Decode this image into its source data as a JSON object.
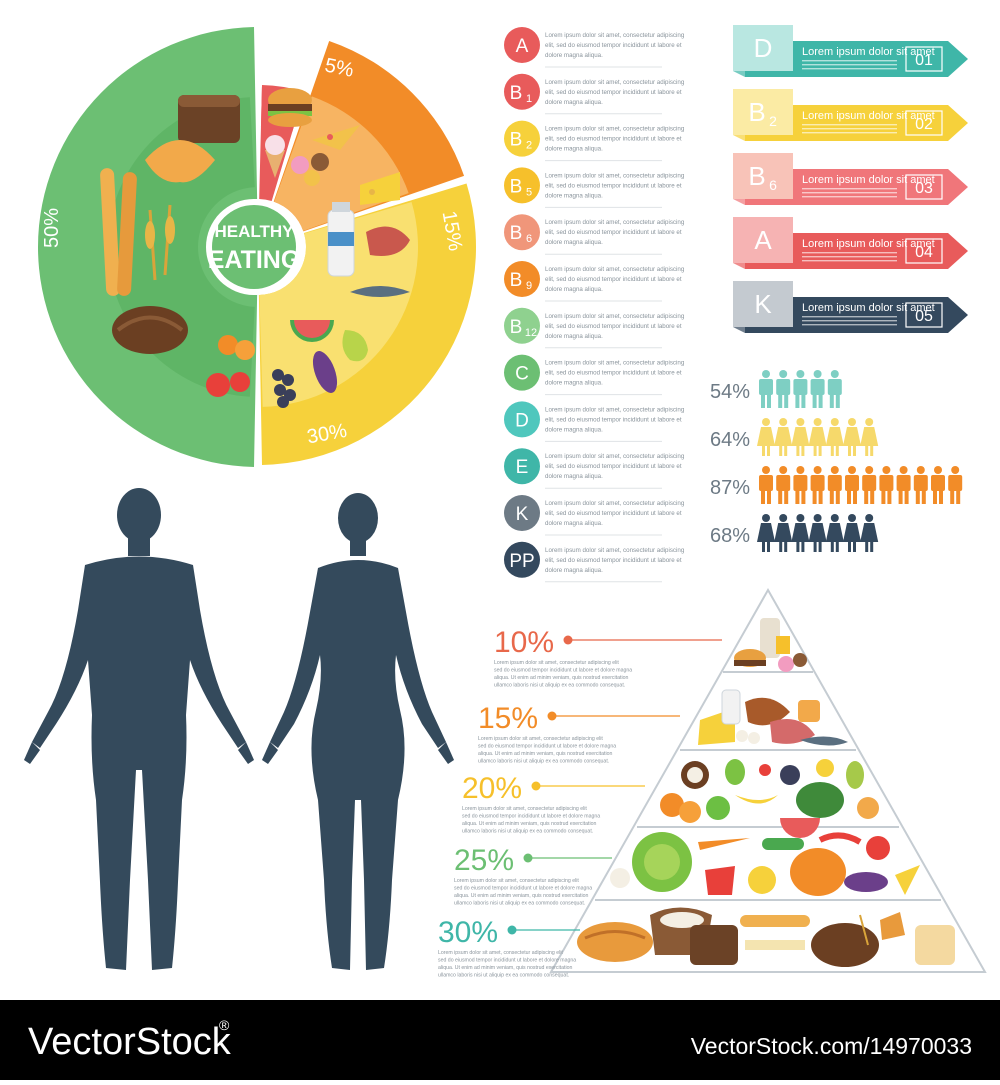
{
  "plate": {
    "title_line1": "HEALTHY",
    "title_line2": "EATING",
    "segments": [
      {
        "name": "grains",
        "percent": 50,
        "label": "50%",
        "color": "#6cbf73",
        "inner": "#5aad62"
      },
      {
        "name": "sweets",
        "percent": 5,
        "label": "5%",
        "color": "#e85b5b",
        "inner": "#f0a6a0"
      },
      {
        "name": "protein",
        "percent": 15,
        "label": "15%",
        "color": "#f28c28",
        "inner": "#f7b462"
      },
      {
        "name": "fruits-vegetables",
        "percent": 30,
        "label": "30%",
        "color": "#f6d13b",
        "inner": "#f9e070"
      }
    ]
  },
  "vitamins": {
    "description_lines": [
      "Lorem ipsum dolor sit amet, consectetur adipiscing",
      "elit, sed do eiusmod tempor incididunt ut labore et",
      "dolore magna aliqua."
    ],
    "items": [
      {
        "label": "A",
        "sub": "",
        "color": "#e85b5b"
      },
      {
        "label": "B",
        "sub": "1",
        "color": "#e85b5b"
      },
      {
        "label": "B",
        "sub": "2",
        "color": "#f6d13b"
      },
      {
        "label": "B",
        "sub": "5",
        "color": "#f6c02b"
      },
      {
        "label": "B",
        "sub": "6",
        "color": "#f0967a"
      },
      {
        "label": "B",
        "sub": "9",
        "color": "#f28c28"
      },
      {
        "label": "B",
        "sub": "12",
        "color": "#8fd18f"
      },
      {
        "label": "C",
        "sub": "",
        "color": "#6cbf73"
      },
      {
        "label": "D",
        "sub": "",
        "color": "#4fc7bd"
      },
      {
        "label": "E",
        "sub": "",
        "color": "#3fb6a8"
      },
      {
        "label": "K",
        "sub": "",
        "color": "#6d7a85"
      },
      {
        "label": "PP",
        "sub": "",
        "color": "#34495e"
      }
    ]
  },
  "banners": {
    "text": "Lorem ipsum dolor sit amet",
    "items": [
      {
        "letter": "D",
        "sub": "",
        "number": "01",
        "color": "#3fb6a8",
        "light": "#b9e7e1"
      },
      {
        "letter": "B",
        "sub": "2",
        "number": "02",
        "color": "#f6d13b",
        "light": "#fbeba4"
      },
      {
        "letter": "B",
        "sub": "6",
        "number": "03",
        "color": "#f0767a",
        "light": "#f8c3b8"
      },
      {
        "letter": "A",
        "sub": "",
        "number": "04",
        "color": "#e85b5b",
        "light": "#f6b3b3"
      },
      {
        "letter": "K",
        "sub": "",
        "number": "05",
        "color": "#34495e",
        "light": "#c4cad0"
      }
    ]
  },
  "people_stats": [
    {
      "label": "54%",
      "value": 54,
      "count": 5,
      "color": "#7ecfc3",
      "type": "male"
    },
    {
      "label": "64%",
      "value": 64,
      "count": 7,
      "color": "#f6d96b",
      "type": "female"
    },
    {
      "label": "87%",
      "value": 87,
      "count": 12,
      "color": "#f28c28",
      "type": "male"
    },
    {
      "label": "68%",
      "value": 68,
      "count": 7,
      "color": "#34495e",
      "type": "female"
    }
  ],
  "pyramid": {
    "description_lines": [
      "Lorem ipsum dolor sit amet, consectetur adipiscing elit",
      "sed do eiusmod tempor incididunt ut labore et dolore magna",
      "aliqua. Ut enim ad minim veniam, quis nostrud exercitation",
      "ullamco laboris nisi ut aliquip ex ea commodo consequat."
    ],
    "levels": [
      {
        "label": "10%",
        "value": 10,
        "color": "#e8684a"
      },
      {
        "label": "15%",
        "value": 15,
        "color": "#f28c28"
      },
      {
        "label": "20%",
        "value": 20,
        "color": "#f6c02b"
      },
      {
        "label": "25%",
        "value": 25,
        "color": "#6cbf73"
      },
      {
        "label": "30%",
        "value": 30,
        "color": "#3fb6a8"
      }
    ]
  },
  "watermark": {
    "logo": "VectorStock",
    "registered": "®",
    "url": "VectorStock.com/14970033"
  },
  "colors": {
    "silhouette": "#344a5c",
    "footer": "#000000"
  }
}
